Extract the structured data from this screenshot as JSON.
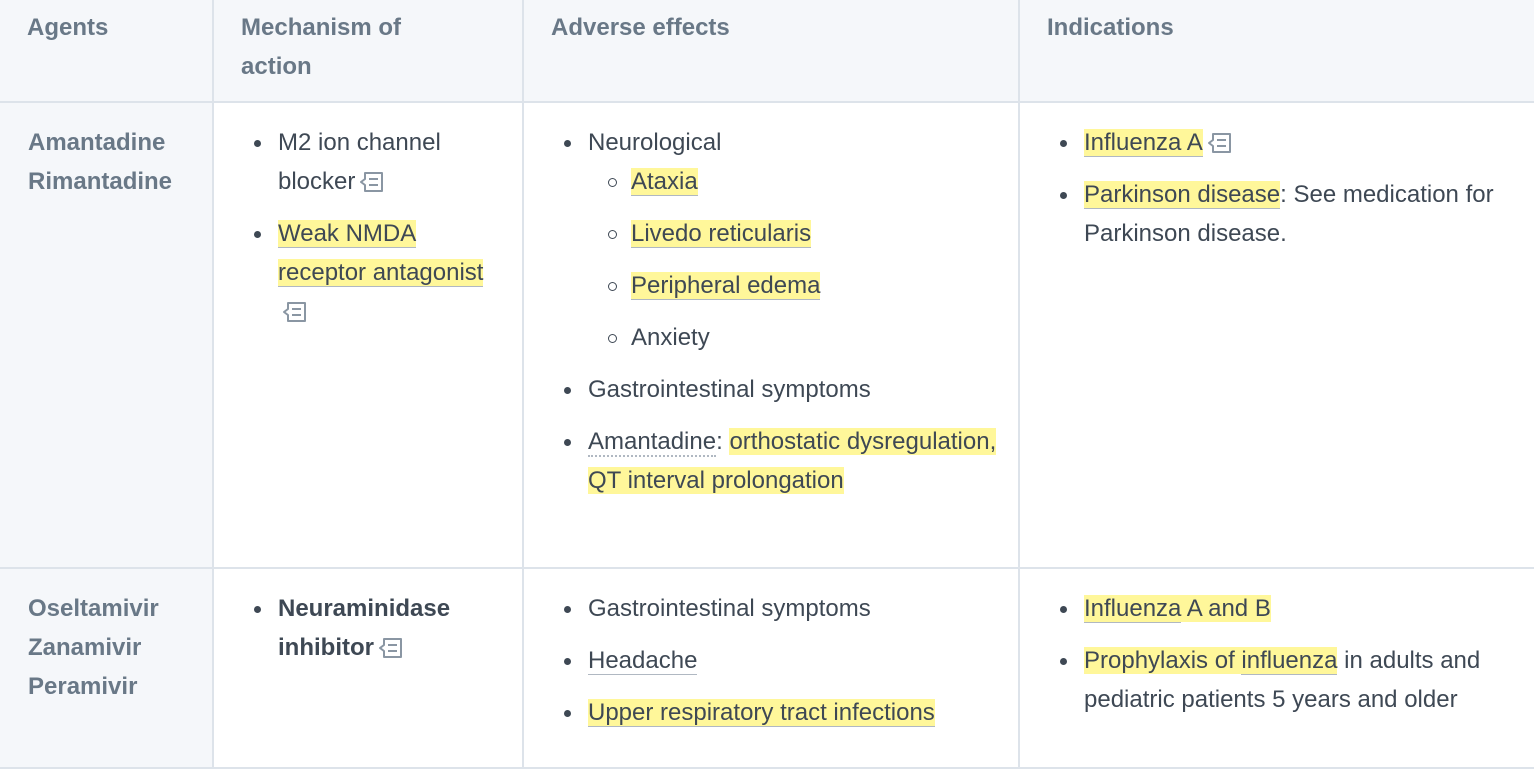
{
  "headers": {
    "agents": "Agents",
    "mechanism": "Mechanism of action",
    "adverse": "Adverse effects",
    "indications": "Indications"
  },
  "rows": [
    {
      "agent_lines": [
        "Amantadine",
        "Rimantadine"
      ],
      "mechanism": [
        "M2 ion channel blocker",
        "Weak NMDA receptor antagonist"
      ],
      "adverse": {
        "neuro_label": "Neurological",
        "neuro_items": [
          "Ataxia",
          "Livedo reticularis",
          "Peripheral edema",
          "Anxiety"
        ],
        "gi": "Gastrointestinal symptoms",
        "amantadine_label": "Amantadine",
        "amantadine_colon": ":",
        "amantadine_effects": "orthostatic dysregulation, QT interval prolongation"
      },
      "indications": {
        "item1": "Influenza A",
        "item2_link": "Parkinson disease",
        "item2_rest": ": See medication for Parkinson disease."
      }
    },
    {
      "agent_lines": [
        "Oseltamivir",
        "Zanamivir",
        "Peramivir"
      ],
      "mechanism": [
        "Neuraminidase inhibitor"
      ],
      "adverse": {
        "items": [
          "Gastrointestinal symptoms",
          "Headache",
          "Upper respiratory tract infections"
        ]
      },
      "indications": {
        "item1_a": "Influenza",
        "item1_b": " A and B",
        "item2_a": "Prophylaxis of ",
        "item2_b": "influenza",
        "item2_rest": " in adults and pediatric patients 5 years and older"
      }
    }
  ],
  "icons": {
    "note": "note-icon"
  }
}
